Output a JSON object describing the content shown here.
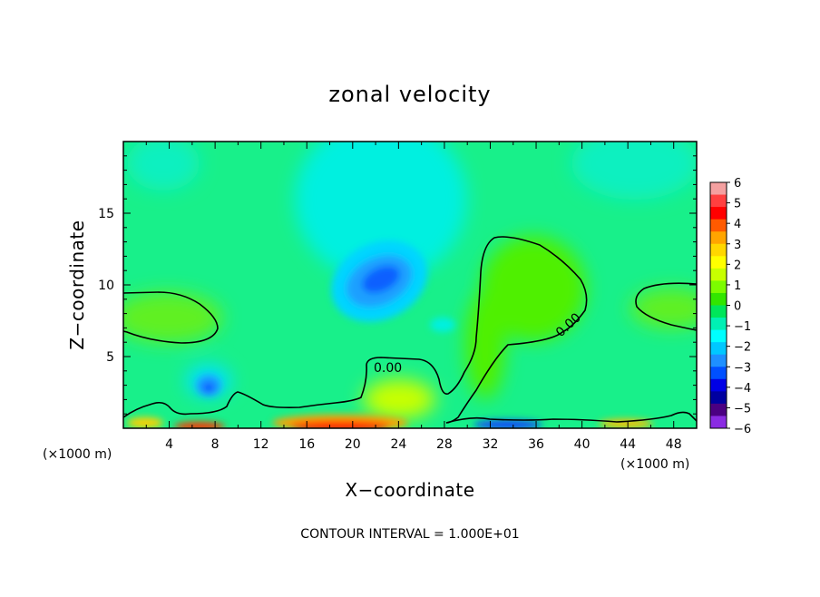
{
  "chart_data": {
    "type": "heatmap",
    "title": "zonal velocity",
    "xlabel": "X−coordinate",
    "ylabel": "Z−coordinate",
    "x_unit_label": "(×1000 m)",
    "x_unit_label_right": "(×1000 m)",
    "footer": "CONTOUR INTERVAL = 1.000E+01",
    "xlim": [
      0,
      50
    ],
    "ylim": [
      0,
      20
    ],
    "xticks": [
      4,
      8,
      12,
      16,
      20,
      24,
      28,
      32,
      36,
      40,
      44,
      48
    ],
    "yticks": [
      5,
      10,
      15
    ],
    "colorbar": {
      "min": -6,
      "max": 6,
      "labels": [
        "6",
        "5",
        "4",
        "3",
        "2",
        "1",
        "0",
        "−1",
        "−2",
        "−3",
        "−4",
        "−5",
        "−6"
      ],
      "colors": [
        "#f4a0a0",
        "#ff4040",
        "#ff0000",
        "#ff5a00",
        "#ffa500",
        "#ffd700",
        "#ffff00",
        "#c8ff00",
        "#7cfc00",
        "#32e600",
        "#00e65a",
        "#00f0b4",
        "#00ffff",
        "#00c8ff",
        "#1e90ff",
        "#0050ff",
        "#0000e6",
        "#0000a0",
        "#4b0082",
        "#8a2be2"
      ]
    },
    "background_value": -1.3,
    "features": [
      {
        "kind": "positive region",
        "x": 3.5,
        "z": 8.2,
        "value": 0.5
      },
      {
        "kind": "positive region",
        "x": 34.5,
        "z": 10.5,
        "value": 1.2
      },
      {
        "kind": "positive region",
        "x": 46.5,
        "z": 8.5,
        "value": 0.4
      },
      {
        "kind": "jet minimum",
        "x": 23,
        "z": 10.3,
        "value": -3.4
      },
      {
        "kind": "weak minimum",
        "x": 7.5,
        "z": 3,
        "value": -2.8
      },
      {
        "kind": "surface positive",
        "x": 19,
        "z": 0.3,
        "value": 4.5
      },
      {
        "kind": "surface positive",
        "x": 7.5,
        "z": 0.2,
        "value": 4
      },
      {
        "kind": "surface negative",
        "x": 32,
        "z": 0.2,
        "value": -5
      }
    ],
    "contour_label": "0.00",
    "grid": false,
    "legend": "right"
  }
}
